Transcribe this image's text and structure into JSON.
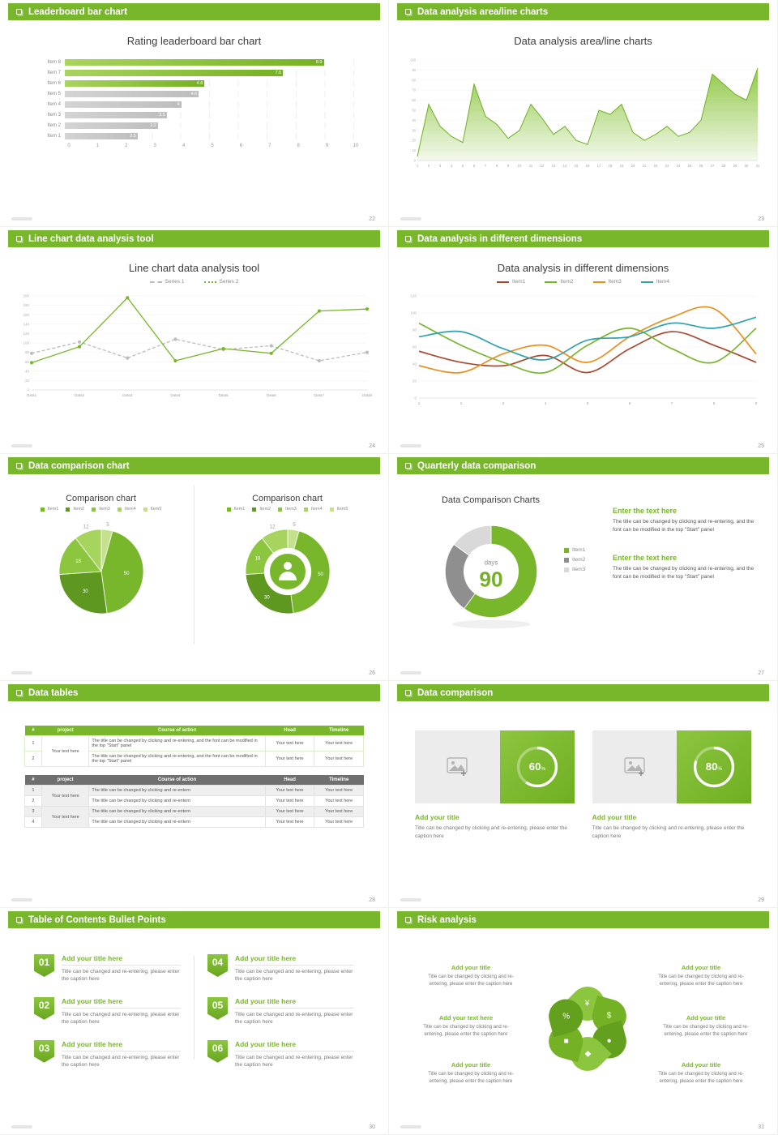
{
  "accent_color": "#78b62b",
  "slides": [
    {
      "header": "Leaderboard bar chart",
      "page": "22",
      "title": "Rating leaderboard bar chart",
      "chart_data": {
        "type": "bar",
        "orientation": "horizontal",
        "title": "Rating leaderboard bar chart",
        "categories": [
          "Item 8",
          "Item 7",
          "Item 6",
          "Item 5",
          "Item 4",
          "Item 3",
          "Item 2",
          "Item 1"
        ],
        "values": [
          8.9,
          7.5,
          4.8,
          4.6,
          4,
          3.5,
          3.2,
          2.5
        ],
        "value_labels": [
          "8.9",
          "7.5",
          "4.8",
          "4.6",
          "4",
          "3.5",
          "3.2",
          "2.5"
        ],
        "highlight_top": 3,
        "xlim": [
          0,
          10
        ],
        "x_ticks": [
          "0",
          "1",
          "2",
          "3",
          "4",
          "5",
          "6",
          "7",
          "8",
          "9",
          "10"
        ],
        "highlight_color": "#78b62b",
        "muted_color": "#c6c6c6"
      }
    },
    {
      "header": "Data analysis area/line charts",
      "page": "23",
      "title": "Data analysis area/line charts",
      "chart_data": {
        "type": "area",
        "x": [
          1,
          2,
          3,
          4,
          5,
          6,
          7,
          8,
          9,
          10,
          11,
          12,
          13,
          14,
          15,
          16,
          17,
          18,
          19,
          20,
          21,
          22,
          23,
          24,
          25,
          26,
          27,
          28,
          29,
          30,
          31
        ],
        "values": [
          4,
          56,
          34,
          24,
          18,
          76,
          44,
          36,
          22,
          30,
          56,
          42,
          26,
          34,
          20,
          16,
          50,
          46,
          56,
          28,
          20,
          26,
          34,
          24,
          28,
          40,
          86,
          76,
          66,
          60,
          92
        ],
        "ylim": [
          0,
          100
        ],
        "y_step": 10,
        "color": "#8cc63f"
      }
    },
    {
      "header": "Line chart data analysis tool",
      "page": "24",
      "title": "Line chart data analysis tool",
      "chart_data": {
        "type": "line",
        "categories": [
          "Data1",
          "Data2",
          "Data3",
          "Data4",
          "Data5",
          "Data6",
          "Data7",
          "Data8"
        ],
        "ylim": [
          0,
          200
        ],
        "y_step": 20,
        "series": [
          {
            "name": "Series 1",
            "color": "#bcbcbc",
            "style": "dashed",
            "values": [
              78,
              102,
              68,
              108,
              86,
              94,
              62,
              80
            ]
          },
          {
            "name": "Series 2",
            "color": "#78b62b",
            "style": "dotted",
            "values": [
              58,
              92,
              196,
              62,
              88,
              78,
              168,
              172
            ]
          }
        ]
      }
    },
    {
      "header": "Data analysis in different dimensions",
      "page": "25",
      "title": "Data analysis in different dimensions",
      "chart_data": {
        "type": "line",
        "smooth": true,
        "x": [
          1,
          2,
          3,
          4,
          5,
          6,
          7,
          8,
          9
        ],
        "ylim": [
          0,
          120
        ],
        "y_step": 20,
        "series": [
          {
            "name": "Item1",
            "color": "#a84b32",
            "values": [
              55,
              42,
              38,
              50,
              30,
              58,
              78,
              62,
              42
            ]
          },
          {
            "name": "Item2",
            "color": "#78b62b",
            "values": [
              88,
              62,
              42,
              30,
              62,
              82,
              58,
              42,
              82
            ]
          },
          {
            "name": "Item3",
            "color": "#e8901e",
            "values": [
              38,
              30,
              52,
              62,
              42,
              72,
              95,
              105,
              52
            ]
          },
          {
            "name": "Item4",
            "color": "#2fa3ae",
            "values": [
              72,
              78,
              58,
              45,
              68,
              72,
              88,
              82,
              95
            ]
          }
        ]
      }
    },
    {
      "header": "Data comparison chart",
      "page": "26",
      "left_title": "Comparison chart",
      "right_title": "Comparison chart",
      "chart_data": {
        "type": "pie",
        "legend": [
          "Item1",
          "Item2",
          "Item3",
          "Item4",
          "Item5"
        ],
        "values": [
          50,
          30,
          18,
          12,
          5
        ],
        "labels": [
          "50",
          "30",
          "18",
          "12",
          "5"
        ],
        "colors": [
          "#78b62b",
          "#5f9821",
          "#8cc63f",
          "#a6d45f",
          "#c4e18d"
        ],
        "draw_order": [
          4,
          0,
          1,
          2,
          3
        ]
      }
    },
    {
      "header": "Quarterly data comparison",
      "page": "27",
      "title": "Data Comparison Charts",
      "chart_data": {
        "type": "donut",
        "values": [
          60,
          25,
          15
        ],
        "colors": [
          "#78b62b",
          "#8f8f8f",
          "#d9d9d9"
        ],
        "legend": [
          "Item1",
          "Item2",
          "Item3"
        ],
        "center_label": "days",
        "center_value": "90"
      },
      "text_blocks": [
        {
          "heading": "Enter the text here",
          "body": "The title can be changed by clicking and re-entering, and the font can be modified in the top \"Start\" panel"
        },
        {
          "heading": "Enter the text here",
          "body": "The title can be changed by clicking and re-entering, and the font can be modified in the top \"Start\" panel"
        }
      ]
    },
    {
      "header": "Data tables",
      "page": "28",
      "table1": {
        "columns": [
          "#",
          "project",
          "Course of action",
          "Head",
          "Timeline"
        ],
        "project_text": "Your text here",
        "rows": [
          {
            "num": "1",
            "course": "The title can be changed by clicking and re-entering, and the font can be modified in the top \"Start\" panel",
            "head": "Your text here",
            "timeline": "Your text here"
          },
          {
            "num": "2",
            "course": "The title can be changed by clicking and re-entering, and the font can be modified in the top \"Start\" panel",
            "head": "Your text here",
            "timeline": "Your text here"
          }
        ]
      },
      "table2": {
        "columns": [
          "#",
          "project",
          "Course of action",
          "Head",
          "Timeline"
        ],
        "project_text": "Your text here",
        "rows": [
          {
            "num": "1",
            "course": "The title can be changed by clicking and re-entern",
            "head": "Your text here",
            "timeline": "Your text here"
          },
          {
            "num": "2",
            "course": "The title can be changed by clicking and re-entern",
            "head": "Your text here",
            "timeline": "Your text here"
          },
          {
            "num": "3",
            "course": "The title can be changed by clicking and re-entern",
            "head": "Your text here",
            "timeline": "Your text here"
          },
          {
            "num": "4",
            "course": "The title can be changed by clicking and re-entern",
            "head": "Your text here",
            "timeline": "Your text here"
          }
        ]
      }
    },
    {
      "header": "Data comparison",
      "page": "29",
      "cards": [
        {
          "value": "60",
          "suffix": "%",
          "title": "Add your title",
          "caption": "Title can be changed by clicking and re-entering, please enter the caption here"
        },
        {
          "value": "80",
          "suffix": "%",
          "title": "Add your title",
          "caption": "Title can be changed by clicking and re-entering, please enter the caption here"
        }
      ]
    },
    {
      "header": "Table of Contents Bullet Points",
      "page": "30",
      "items": [
        {
          "num": "01",
          "title": "Add your title here",
          "caption": "Title can be changed and re-entering, please enter the caption here"
        },
        {
          "num": "02",
          "title": "Add your title here",
          "caption": "Title can be changed and re-entering, please enter the caption here"
        },
        {
          "num": "03",
          "title": "Add your title here",
          "caption": "Title can be changed and re-entering, please enter the caption here"
        },
        {
          "num": "04",
          "title": "Add your title here",
          "caption": "Title can be changed and re-entering, please enter the caption here"
        },
        {
          "num": "05",
          "title": "Add your title here",
          "caption": "Title can be changed and re-entering, please enter the caption here"
        },
        {
          "num": "06",
          "title": "Add your title here",
          "caption": "Title can be changed and re-entering, please enter the caption here"
        }
      ]
    },
    {
      "header": "Risk analysis",
      "page": "31",
      "wheel_icons": [
        "moneybag",
        "coins",
        "people",
        "chart",
        "bank",
        "percent"
      ],
      "blocks": [
        {
          "title": "Add your title",
          "caption": "Title can be changed by clicking and re-entering, please enter the caption here"
        },
        {
          "title": "Add your text here",
          "caption": "Title can be changed by clicking and re-entering, please enter the caption here"
        },
        {
          "title": "Add your title",
          "caption": "Title can be changed by clicking and re-entering, please enter the caption here"
        },
        {
          "title": "Add your title",
          "caption": "Title can be changed by clicking and re-entering, please enter the caption here"
        },
        {
          "title": "Add your title",
          "caption": "Title can be changed by clicking and re-entering, please enter the caption here"
        },
        {
          "title": "Add your title",
          "caption": "Title can be changed by clicking and re-entering, please enter the caption here"
        }
      ]
    }
  ]
}
